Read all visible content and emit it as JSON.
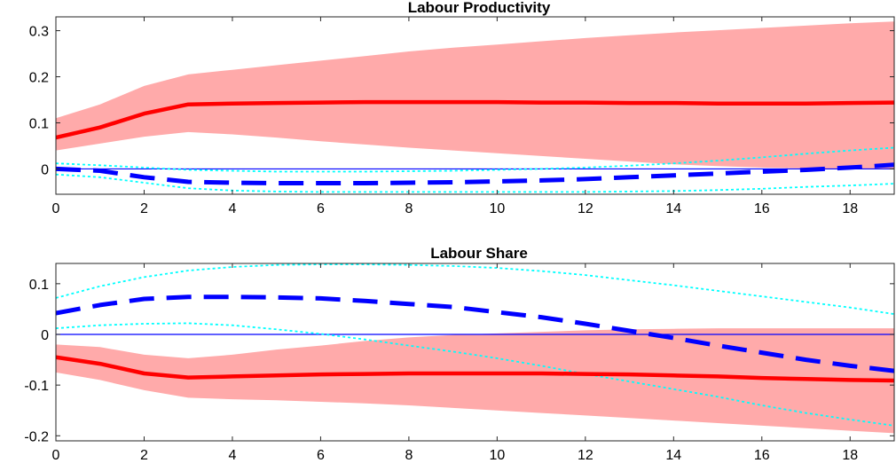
{
  "chart_data": [
    {
      "type": "line",
      "title": "Labour Productivity",
      "xlabel": "",
      "ylabel": "",
      "xlim": [
        0,
        19
      ],
      "ylim": [
        -0.055,
        0.33
      ],
      "xticks": [
        0,
        2,
        4,
        6,
        8,
        10,
        12,
        14,
        16,
        18
      ],
      "yticks": [
        0,
        0.1,
        0.2,
        0.3
      ],
      "ytick_labels": [
        "0",
        "0.1",
        "0.2",
        "0.3"
      ],
      "x": [
        0,
        1,
        2,
        3,
        4,
        5,
        6,
        7,
        8,
        9,
        10,
        11,
        12,
        13,
        14,
        15,
        16,
        17,
        18,
        19
      ],
      "zero_line": {
        "y": 0,
        "color": "#0000ff"
      },
      "band": {
        "color": "#ffaaaa",
        "lower": [
          0.04,
          0.055,
          0.07,
          0.08,
          0.075,
          0.068,
          0.06,
          0.053,
          0.046,
          0.04,
          0.034,
          0.028,
          0.022,
          0.016,
          0.01,
          0.006,
          0.003,
          0.001,
          0.0,
          0.0
        ],
        "upper": [
          0.11,
          0.14,
          0.18,
          0.205,
          0.215,
          0.225,
          0.235,
          0.245,
          0.255,
          0.263,
          0.27,
          0.277,
          0.284,
          0.29,
          0.296,
          0.301,
          0.306,
          0.311,
          0.316,
          0.32
        ]
      },
      "series": [
        {
          "role": "solid",
          "color": "#ff0000",
          "dash": false,
          "values": [
            0.068,
            0.09,
            0.12,
            0.14,
            0.142,
            0.143,
            0.144,
            0.145,
            0.145,
            0.145,
            0.145,
            0.144,
            0.144,
            0.143,
            0.143,
            0.142,
            0.142,
            0.142,
            0.143,
            0.144
          ]
        },
        {
          "role": "dashed",
          "color": "#0000ff",
          "dash": true,
          "values": [
            0.0,
            -0.004,
            -0.018,
            -0.028,
            -0.03,
            -0.031,
            -0.031,
            -0.031,
            -0.03,
            -0.029,
            -0.027,
            -0.025,
            -0.022,
            -0.018,
            -0.014,
            -0.01,
            -0.006,
            -0.002,
            0.003,
            0.009
          ]
        },
        {
          "role": "dotted",
          "color": "#00ffff",
          "dash": "dot",
          "values": [
            0.012,
            0.008,
            0.003,
            -0.002,
            -0.004,
            -0.006,
            -0.006,
            -0.006,
            -0.005,
            -0.004,
            -0.002,
            0.0,
            0.003,
            0.007,
            0.012,
            0.018,
            0.025,
            0.033,
            0.04,
            0.046
          ]
        },
        {
          "role": "dotted",
          "color": "#00ffff",
          "dash": "dot",
          "values": [
            -0.012,
            -0.018,
            -0.03,
            -0.042,
            -0.047,
            -0.049,
            -0.05,
            -0.05,
            -0.05,
            -0.05,
            -0.05,
            -0.05,
            -0.05,
            -0.049,
            -0.048,
            -0.046,
            -0.043,
            -0.039,
            -0.036,
            -0.032
          ]
        }
      ]
    },
    {
      "type": "line",
      "title": "Labour Share",
      "xlabel": "",
      "ylabel": "",
      "xlim": [
        0,
        19
      ],
      "ylim": [
        -0.21,
        0.14
      ],
      "xticks": [
        0,
        2,
        4,
        6,
        8,
        10,
        12,
        14,
        16,
        18
      ],
      "yticks": [
        -0.2,
        -0.1,
        0,
        0.1
      ],
      "ytick_labels": [
        "-0.2",
        "-0.1",
        "0",
        "0.1"
      ],
      "x": [
        0,
        1,
        2,
        3,
        4,
        5,
        6,
        7,
        8,
        9,
        10,
        11,
        12,
        13,
        14,
        15,
        16,
        17,
        18,
        19
      ],
      "zero_line": {
        "y": 0,
        "color": "#0000ff"
      },
      "band": {
        "color": "#ffaaaa",
        "lower": [
          -0.075,
          -0.09,
          -0.11,
          -0.125,
          -0.128,
          -0.13,
          -0.133,
          -0.136,
          -0.14,
          -0.145,
          -0.15,
          -0.155,
          -0.16,
          -0.165,
          -0.17,
          -0.175,
          -0.18,
          -0.185,
          -0.19,
          -0.195
        ],
        "upper": [
          -0.02,
          -0.025,
          -0.04,
          -0.047,
          -0.04,
          -0.03,
          -0.022,
          -0.013,
          -0.006,
          -0.001,
          0.002,
          0.005,
          0.008,
          0.01,
          0.011,
          0.012,
          0.012,
          0.012,
          0.012,
          0.012
        ]
      },
      "series": [
        {
          "role": "solid",
          "color": "#ff0000",
          "dash": false,
          "values": [
            -0.045,
            -0.058,
            -0.077,
            -0.085,
            -0.083,
            -0.081,
            -0.079,
            -0.078,
            -0.077,
            -0.077,
            -0.077,
            -0.077,
            -0.078,
            -0.079,
            -0.081,
            -0.083,
            -0.086,
            -0.088,
            -0.09,
            -0.091
          ]
        },
        {
          "role": "dashed",
          "color": "#0000ff",
          "dash": true,
          "values": [
            0.042,
            0.058,
            0.07,
            0.074,
            0.074,
            0.073,
            0.071,
            0.066,
            0.06,
            0.054,
            0.044,
            0.034,
            0.021,
            0.007,
            -0.007,
            -0.022,
            -0.036,
            -0.05,
            -0.062,
            -0.072
          ]
        },
        {
          "role": "dotted",
          "color": "#00ffff",
          "dash": "dot",
          "values": [
            0.072,
            0.095,
            0.113,
            0.126,
            0.133,
            0.137,
            0.138,
            0.138,
            0.137,
            0.135,
            0.131,
            0.125,
            0.117,
            0.107,
            0.097,
            0.086,
            0.075,
            0.064,
            0.053,
            0.04
          ]
        },
        {
          "role": "dotted",
          "color": "#00ffff",
          "dash": "dot",
          "values": [
            0.012,
            0.018,
            0.021,
            0.022,
            0.018,
            0.01,
            0.001,
            -0.01,
            -0.022,
            -0.034,
            -0.047,
            -0.062,
            -0.078,
            -0.093,
            -0.108,
            -0.123,
            -0.14,
            -0.155,
            -0.168,
            -0.18
          ]
        }
      ]
    }
  ]
}
